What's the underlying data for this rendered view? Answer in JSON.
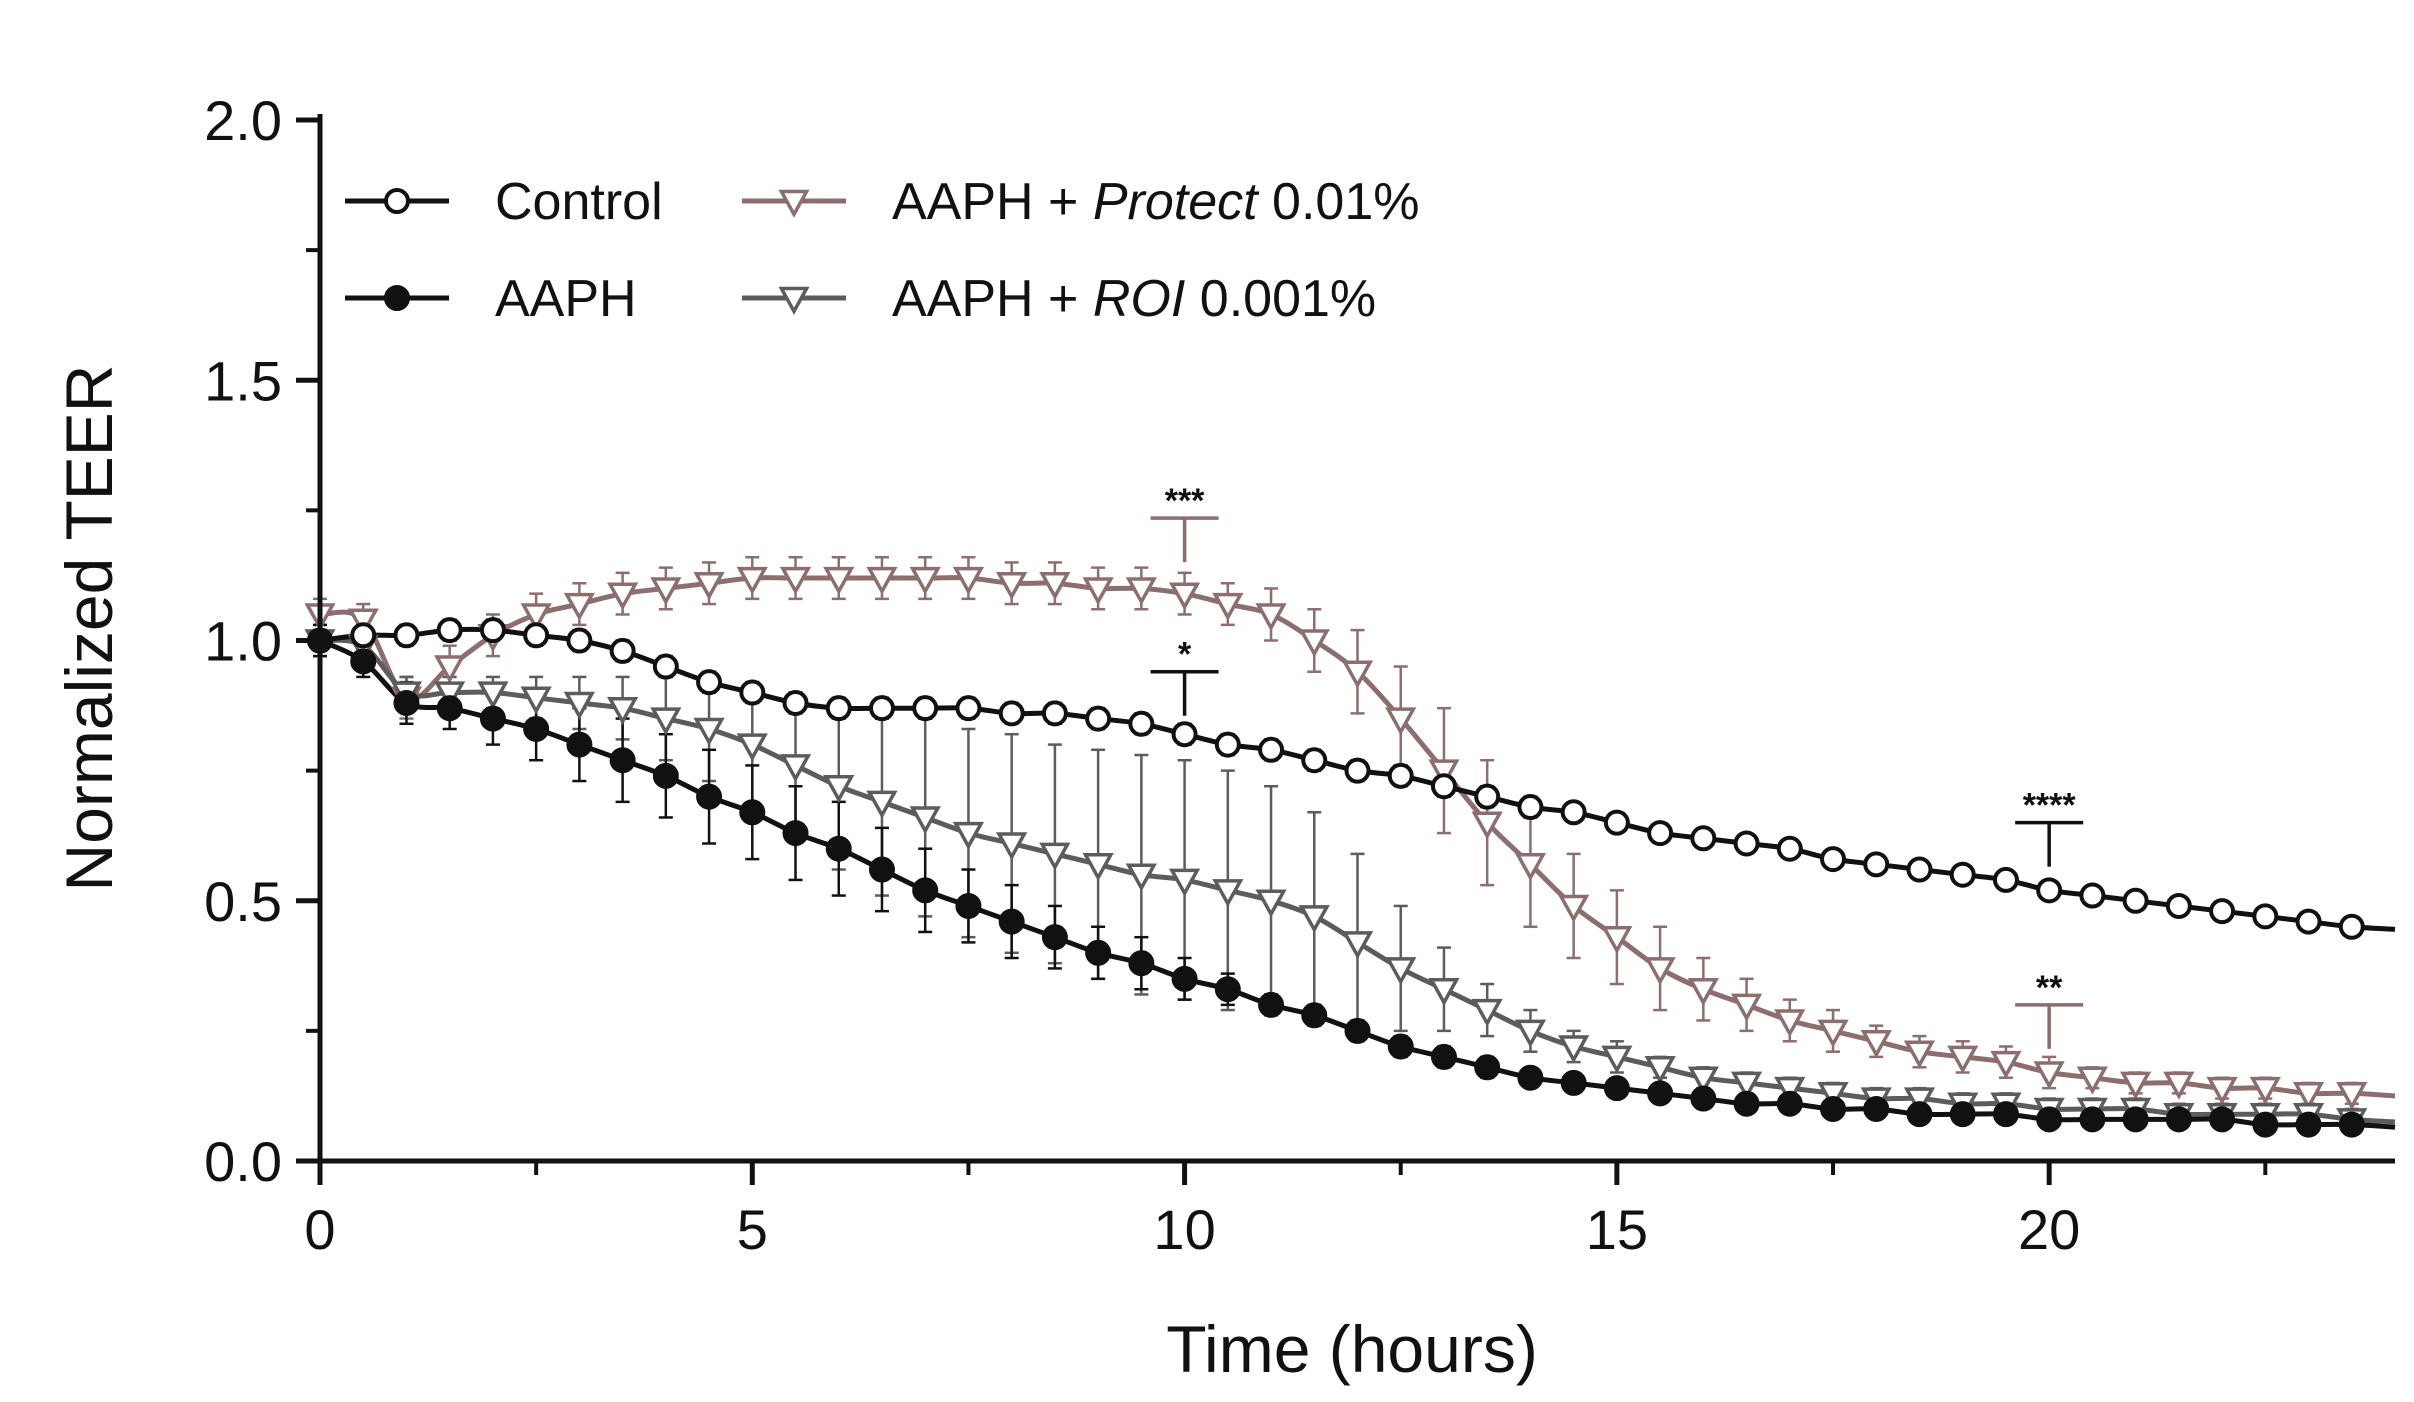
{
  "chart_data": {
    "type": "line",
    "xlabel": "Time (hours)",
    "ylabel": "Normalized TEER",
    "xlim": [
      0,
      24
    ],
    "ylim": [
      0,
      2.0
    ],
    "xticks": [
      0,
      5,
      10,
      15,
      20
    ],
    "xtick_labels": [
      "0",
      "5",
      "10",
      "15",
      "20"
    ],
    "yticks": [
      0,
      0.5,
      1.0,
      1.5,
      2.0
    ],
    "ytick_labels": [
      "0.0",
      "0.5",
      "1.0",
      "1.5",
      "2.0"
    ],
    "grid": false,
    "legend_position": "top-left",
    "series": [
      {
        "name": "Control",
        "legend_label": "Control",
        "color": "#111111",
        "marker": "open-circle",
        "x": [
          0,
          0.5,
          1,
          1.5,
          2,
          2.5,
          3,
          3.5,
          4,
          4.5,
          5,
          5.5,
          6,
          6.5,
          7,
          7.5,
          8,
          8.5,
          9,
          9.5,
          10,
          10.5,
          11,
          11.5,
          12,
          12.5,
          13,
          13.5,
          14,
          14.5,
          15,
          15.5,
          16,
          16.5,
          17,
          17.5,
          18,
          18.5,
          19,
          19.5,
          20,
          20.5,
          21,
          21.5,
          22,
          22.5,
          23,
          23.5
        ],
        "values": [
          1.0,
          1.01,
          1.01,
          1.02,
          1.02,
          1.01,
          1.0,
          0.98,
          0.95,
          0.92,
          0.9,
          0.88,
          0.87,
          0.87,
          0.87,
          0.87,
          0.86,
          0.86,
          0.85,
          0.84,
          0.82,
          0.8,
          0.79,
          0.77,
          0.75,
          0.74,
          0.72,
          0.7,
          0.68,
          0.67,
          0.65,
          0.63,
          0.62,
          0.61,
          0.6,
          0.58,
          0.57,
          0.56,
          0.55,
          0.54,
          0.52,
          0.51,
          0.5,
          0.49,
          0.48,
          0.47,
          0.46,
          0.45
        ],
        "errors": [
          0.03,
          0.02,
          0.02,
          0.02,
          0.02,
          0.02,
          0.02,
          0.02,
          0.02,
          0.02,
          0.02,
          0.02,
          0.02,
          0.02,
          0.02,
          0.02,
          0.02,
          0.02,
          0.02,
          0.02,
          0.02,
          0.02,
          0.02,
          0.02,
          0.02,
          0.02,
          0.02,
          0.02,
          0.02,
          0.01,
          0.01,
          0.01,
          0.01,
          0.01,
          0.01,
          0.01,
          0.01,
          0.01,
          0.01,
          0.01,
          0.01,
          0.01,
          0.01,
          0.01,
          0.01,
          0.01,
          0.01,
          0.01
        ]
      },
      {
        "name": "AAPH",
        "legend_label": "AAPH",
        "color": "#111111",
        "marker": "filled-circle",
        "x": [
          0,
          0.5,
          1,
          1.5,
          2,
          2.5,
          3,
          3.5,
          4,
          4.5,
          5,
          5.5,
          6,
          6.5,
          7,
          7.5,
          8,
          8.5,
          9,
          9.5,
          10,
          10.5,
          11,
          11.5,
          12,
          12.5,
          13,
          13.5,
          14,
          14.5,
          15,
          15.5,
          16,
          16.5,
          17,
          17.5,
          18,
          18.5,
          19,
          19.5,
          20,
          20.5,
          21,
          21.5,
          22,
          22.5,
          23,
          23.5
        ],
        "values": [
          1.0,
          0.96,
          0.88,
          0.87,
          0.85,
          0.83,
          0.8,
          0.77,
          0.74,
          0.7,
          0.67,
          0.63,
          0.6,
          0.56,
          0.52,
          0.49,
          0.46,
          0.43,
          0.4,
          0.38,
          0.35,
          0.33,
          0.3,
          0.28,
          0.25,
          0.22,
          0.2,
          0.18,
          0.16,
          0.15,
          0.14,
          0.13,
          0.12,
          0.11,
          0.11,
          0.1,
          0.1,
          0.09,
          0.09,
          0.09,
          0.08,
          0.08,
          0.08,
          0.08,
          0.08,
          0.07,
          0.07,
          0.07
        ],
        "errors": [
          0.02,
          0.03,
          0.04,
          0.04,
          0.05,
          0.06,
          0.07,
          0.08,
          0.08,
          0.09,
          0.09,
          0.09,
          0.09,
          0.08,
          0.08,
          0.07,
          0.07,
          0.06,
          0.05,
          0.05,
          0.04,
          0.03,
          0.02,
          0.02,
          0.02,
          0.02,
          0.02,
          0.02,
          0.01,
          0.01,
          0.01,
          0.01,
          0.01,
          0.01,
          0.01,
          0.01,
          0.01,
          0.01,
          0.01,
          0.01,
          0.01,
          0.01,
          0.01,
          0.01,
          0.01,
          0.01,
          0.01,
          0.01
        ]
      },
      {
        "name": "AAPH + Protect 0.01%",
        "legend_label": {
          "prefix": "AAPH + ",
          "italic": "Protect",
          "suffix": " 0.01%"
        },
        "color": "#8c6e6e",
        "marker": "open-triangle-down",
        "x": [
          0,
          0.5,
          1,
          1.5,
          2,
          2.5,
          3,
          3.5,
          4,
          4.5,
          5,
          5.5,
          6,
          6.5,
          7,
          7.5,
          8,
          8.5,
          9,
          9.5,
          10,
          10.5,
          11,
          11.5,
          12,
          12.5,
          13,
          13.5,
          14,
          14.5,
          15,
          15.5,
          16,
          16.5,
          17,
          17.5,
          18,
          18.5,
          19,
          19.5,
          20,
          20.5,
          21,
          21.5,
          22,
          22.5,
          23,
          23.5
        ],
        "values": [
          1.05,
          1.04,
          0.89,
          0.95,
          1.01,
          1.05,
          1.07,
          1.09,
          1.1,
          1.11,
          1.12,
          1.12,
          1.12,
          1.12,
          1.12,
          1.12,
          1.11,
          1.11,
          1.1,
          1.1,
          1.09,
          1.07,
          1.05,
          1.0,
          0.94,
          0.85,
          0.75,
          0.65,
          0.57,
          0.49,
          0.43,
          0.37,
          0.33,
          0.3,
          0.27,
          0.25,
          0.23,
          0.21,
          0.2,
          0.19,
          0.17,
          0.16,
          0.15,
          0.15,
          0.14,
          0.14,
          0.13,
          0.13
        ],
        "errors": [
          0.03,
          0.03,
          0.04,
          0.04,
          0.04,
          0.04,
          0.04,
          0.04,
          0.04,
          0.04,
          0.04,
          0.04,
          0.04,
          0.04,
          0.04,
          0.04,
          0.04,
          0.04,
          0.04,
          0.04,
          0.04,
          0.04,
          0.05,
          0.06,
          0.08,
          0.1,
          0.12,
          0.12,
          0.12,
          0.1,
          0.09,
          0.08,
          0.06,
          0.05,
          0.04,
          0.04,
          0.03,
          0.03,
          0.03,
          0.03,
          0.03,
          0.02,
          0.02,
          0.02,
          0.02,
          0.02,
          0.02,
          0.02
        ]
      },
      {
        "name": "AAPH + ROI 0.001%",
        "legend_label": {
          "prefix": "AAPH + ",
          "italic": "ROI",
          "suffix": " 0.001%"
        },
        "color": "#5c5c5c",
        "marker": "open-triangle-down",
        "x": [
          0,
          0.5,
          1,
          1.5,
          2,
          2.5,
          3,
          3.5,
          4,
          4.5,
          5,
          5.5,
          6,
          6.5,
          7,
          7.5,
          8,
          8.5,
          9,
          9.5,
          10,
          10.5,
          11,
          11.5,
          12,
          12.5,
          13,
          13.5,
          14,
          14.5,
          15,
          15.5,
          16,
          16.5,
          17,
          17.5,
          18,
          18.5,
          19,
          19.5,
          20,
          20.5,
          21,
          21.5,
          22,
          22.5,
          23,
          23.5
        ],
        "values": [
          1.0,
          0.99,
          0.9,
          0.9,
          0.9,
          0.89,
          0.88,
          0.87,
          0.85,
          0.83,
          0.8,
          0.76,
          0.72,
          0.69,
          0.66,
          0.63,
          0.61,
          0.59,
          0.57,
          0.55,
          0.54,
          0.52,
          0.5,
          0.47,
          0.42,
          0.37,
          0.33,
          0.29,
          0.25,
          0.22,
          0.2,
          0.18,
          0.16,
          0.15,
          0.14,
          0.13,
          0.12,
          0.12,
          0.11,
          0.11,
          0.1,
          0.1,
          0.1,
          0.09,
          0.09,
          0.09,
          0.09,
          0.08
        ],
        "errors": [
          0.03,
          0.03,
          0.03,
          0.03,
          0.03,
          0.04,
          0.05,
          0.06,
          0.08,
          0.1,
          0.12,
          0.14,
          0.16,
          0.18,
          0.19,
          0.2,
          0.21,
          0.21,
          0.22,
          0.23,
          0.23,
          0.23,
          0.22,
          0.2,
          0.17,
          0.12,
          0.08,
          0.05,
          0.04,
          0.03,
          0.03,
          0.02,
          0.02,
          0.02,
          0.02,
          0.02,
          0.02,
          0.02,
          0.02,
          0.02,
          0.02,
          0.02,
          0.02,
          0.02,
          0.02,
          0.02,
          0.02,
          0.02
        ]
      }
    ],
    "annotations": [
      {
        "text": "***",
        "x": 10,
        "y": 1.235,
        "color": "#8c6e6e"
      },
      {
        "text": "*",
        "x": 10,
        "y": 0.94,
        "color": "#111111"
      },
      {
        "text": "****",
        "x": 20,
        "y": 0.65,
        "color": "#111111"
      },
      {
        "text": "**",
        "x": 20,
        "y": 0.3,
        "color": "#8c6e6e"
      }
    ]
  }
}
